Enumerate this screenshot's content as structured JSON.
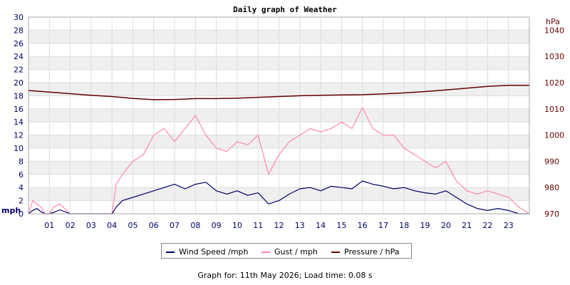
{
  "chart_data": {
    "type": "line",
    "title": "Daily graph of Weather",
    "x_tick_labels": [
      "01",
      "02",
      "03",
      "04",
      "05",
      "06",
      "07",
      "08",
      "09",
      "10",
      "11",
      "12",
      "13",
      "14",
      "15",
      "16",
      "17",
      "18",
      "19",
      "20",
      "21",
      "22",
      "23"
    ],
    "x_range_hours": [
      0,
      24
    ],
    "left_axis": {
      "unit_label": "mph",
      "ylim": [
        0,
        30
      ],
      "ticks": [
        0,
        2,
        4,
        6,
        8,
        10,
        12,
        14,
        16,
        18,
        20,
        22,
        24,
        26,
        28,
        30
      ],
      "color": "#000066"
    },
    "right_axis": {
      "unit_label": "hPa",
      "ylim": [
        970,
        1045
      ],
      "ticks": [
        970,
        980,
        990,
        1000,
        1010,
        1020,
        1030,
        1040
      ],
      "color": "#660000"
    },
    "grid": true,
    "series": [
      {
        "name": "Wind Speed /mph",
        "axis": "left",
        "color": "#000066",
        "x": [
          0,
          0.2,
          0.4,
          0.6,
          0.8,
          1.0,
          1.2,
          1.5,
          2.0,
          2.5,
          3.0,
          3.5,
          4.0,
          4.2,
          4.5,
          5.0,
          5.5,
          6.0,
          6.5,
          7.0,
          7.5,
          8.0,
          8.5,
          9.0,
          9.5,
          10.0,
          10.5,
          11.0,
          11.5,
          12.0,
          12.5,
          13.0,
          13.5,
          14.0,
          14.5,
          15.0,
          15.5,
          16.0,
          16.5,
          17.0,
          17.5,
          18.0,
          18.5,
          19.0,
          19.5,
          20.0,
          20.5,
          21.0,
          21.5,
          22.0,
          22.5,
          23.0,
          23.5,
          24.0
        ],
        "y": [
          0,
          0.5,
          0.8,
          0.3,
          0,
          0,
          0.2,
          0.6,
          0,
          0,
          0,
          0,
          0,
          1.0,
          2.0,
          2.5,
          3.0,
          3.5,
          4.0,
          4.5,
          3.8,
          4.5,
          4.8,
          3.5,
          3.0,
          3.5,
          2.8,
          3.2,
          1.5,
          2.0,
          3.0,
          3.8,
          4.0,
          3.5,
          4.2,
          4.0,
          3.8,
          5.0,
          4.5,
          4.2,
          3.8,
          4.0,
          3.5,
          3.2,
          3.0,
          3.5,
          2.5,
          1.5,
          0.8,
          0.5,
          0.8,
          0.5,
          0,
          0
        ]
      },
      {
        "name": "Gust / mph",
        "axis": "left",
        "color": "#ff88aa",
        "x": [
          0,
          0.2,
          0.4,
          0.6,
          0.8,
          1.0,
          1.2,
          1.5,
          2.0,
          2.5,
          3.0,
          3.5,
          4.0,
          4.2,
          4.5,
          5.0,
          5.5,
          6.0,
          6.5,
          7.0,
          7.5,
          8.0,
          8.5,
          9.0,
          9.5,
          10.0,
          10.5,
          11.0,
          11.5,
          12.0,
          12.5,
          13.0,
          13.5,
          14.0,
          14.5,
          15.0,
          15.5,
          16.0,
          16.5,
          17.0,
          17.5,
          18.0,
          18.5,
          19.0,
          19.5,
          20.0,
          20.5,
          21.0,
          21.5,
          22.0,
          22.5,
          23.0,
          23.5,
          24.0
        ],
        "y": [
          0,
          2.0,
          1.5,
          1.0,
          0,
          0,
          1.0,
          1.5,
          0,
          0,
          0,
          0,
          0,
          4.5,
          6.0,
          8.0,
          9.0,
          12.0,
          13.0,
          11.0,
          13.0,
          15.0,
          12.0,
          10.0,
          9.5,
          11.0,
          10.5,
          12.0,
          6.0,
          9.0,
          11.0,
          12.0,
          13.0,
          12.5,
          13.0,
          14.0,
          13.0,
          16.2,
          13.0,
          12.0,
          12.0,
          10.0,
          9.0,
          8.0,
          7.0,
          8.0,
          5.0,
          3.5,
          3.0,
          3.5,
          3.0,
          2.5,
          1.0,
          0
        ]
      },
      {
        "name": "Pressure / hPa",
        "axis": "right",
        "color": "#660000",
        "x": [
          0,
          1,
          2,
          3,
          4,
          5,
          6,
          7,
          8,
          9,
          10,
          11,
          12,
          13,
          14,
          15,
          16,
          17,
          18,
          19,
          20,
          21,
          22,
          23,
          24
        ],
        "y": [
          1017,
          1016.4,
          1015.8,
          1015.2,
          1014.7,
          1014,
          1013.5,
          1013.6,
          1013.9,
          1013.9,
          1014.1,
          1014.4,
          1014.7,
          1015,
          1015.2,
          1015.3,
          1015.4,
          1015.7,
          1016.1,
          1016.6,
          1017.2,
          1017.9,
          1018.6,
          1019,
          1019
        ]
      }
    ]
  },
  "footer_text": "Graph for: 11th May 2026; Load time: 0.08 s"
}
